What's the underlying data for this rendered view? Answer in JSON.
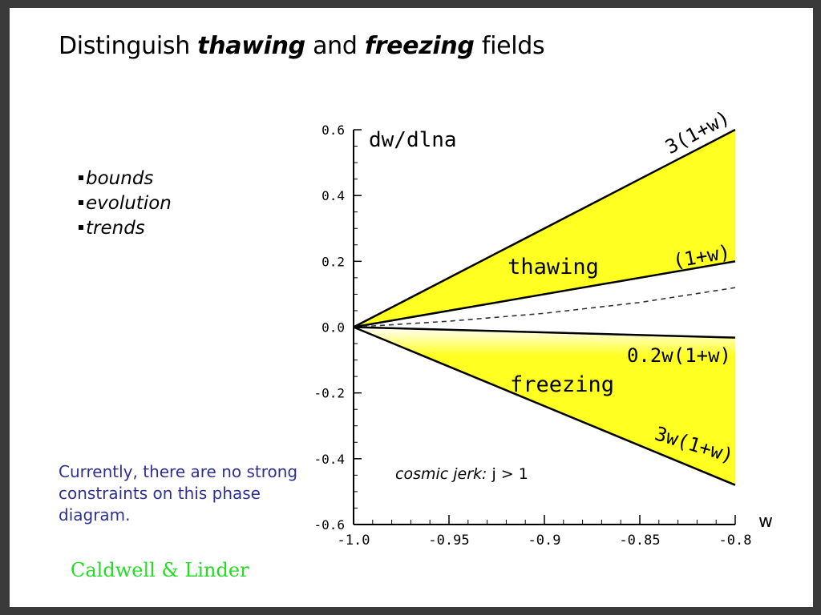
{
  "slide": {
    "title_prefix": "Distinguish ",
    "title_em1": "thawing",
    "title_mid": " and ",
    "title_em2": "freezing",
    "title_suffix": " fields",
    "bullets": [
      "bounds",
      "evolution",
      "trends"
    ],
    "note": "Currently, there are no strong constraints on this phase diagram.",
    "credit": "Caldwell & Linder"
  },
  "colors": {
    "fill": "#ffff22",
    "text_blue": "#2e3192",
    "credit_green": "#22dd22"
  },
  "chart_data": {
    "type": "line",
    "xlabel": "w",
    "ylabel": "dw/dlna",
    "xlim": [
      -1.0,
      -0.8
    ],
    "ylim": [
      -0.6,
      0.6
    ],
    "xticks": [
      "-1.0",
      "-0.95",
      "-0.9",
      "-0.85",
      "-0.8"
    ],
    "xtick_values": [
      -1.0,
      -0.95,
      -0.9,
      -0.85,
      -0.8
    ],
    "yticks": [
      "0.6",
      "0.4",
      "0.2",
      "0.0",
      "-0.2",
      "-0.4",
      "-0.6"
    ],
    "ytick_values": [
      0.6,
      0.4,
      0.2,
      0.0,
      -0.2,
      -0.4,
      -0.6
    ],
    "series": [
      {
        "name": "3(1+w)",
        "x": [
          -1.0,
          -0.8
        ],
        "y": [
          0.0,
          0.6
        ]
      },
      {
        "name": "(1+w)",
        "x": [
          -1.0,
          -0.8
        ],
        "y": [
          0.0,
          0.2
        ]
      },
      {
        "name": "0.2w(1+w)",
        "x": [
          -1.0,
          -0.8
        ],
        "y": [
          0.0,
          -0.032
        ]
      },
      {
        "name": "3w(1+w)",
        "x": [
          -1.0,
          -0.8
        ],
        "y": [
          0.0,
          -0.48
        ]
      },
      {
        "x": [
          -1.0,
          -0.95,
          -0.9,
          -0.85,
          -0.8
        ],
        "y": [
          0.0,
          0.018,
          0.042,
          0.075,
          0.12
        ]
      }
    ],
    "regions": [
      {
        "label": "thawing",
        "between": [
          "3(1+w)",
          "(1+w)"
        ]
      },
      {
        "label": "freezing",
        "between": [
          "0.2w(1+w)",
          "3w(1+w)"
        ]
      }
    ],
    "annotations": {
      "jerk_italic": "cosmic jerk:",
      "jerk_rest": " j > 1"
    }
  }
}
